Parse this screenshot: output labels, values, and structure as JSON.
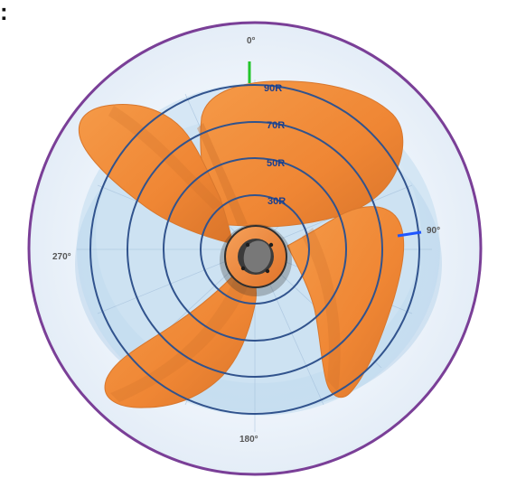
{
  "corner_mark": ":",
  "angle_labels": {
    "top": "0°",
    "right": "90°",
    "bottom": "180°",
    "left": "270°"
  },
  "ring_labels": [
    "90R",
    "70R",
    "50R",
    "30R"
  ],
  "colors": {
    "outer_border": "#7a3f97",
    "background_fill": "#eef4fb",
    "ring_outline": "#31538d",
    "blade_fill": "#ef8634",
    "blade_shadow": "#cf6f27",
    "hub_fill": "#ef8634",
    "hub_shadow": "#3a3a3a",
    "axis_green": "#23c52a",
    "axis_blue": "#1f56ff",
    "translucent_disc": "#9ec5e4"
  }
}
